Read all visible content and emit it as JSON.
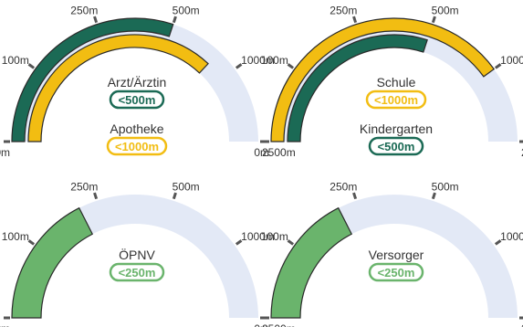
{
  "colors": {
    "track": "#e3e9f6",
    "tick": "#555555",
    "dark_green": "#1b6a55",
    "yellow": "#f2bd12",
    "light_green": "#6ab46c",
    "outline": "#2a2a2a"
  },
  "tick_labels": [
    "0m",
    "100m",
    "250m",
    "500m",
    "1000m",
    "2500m"
  ],
  "chart_data": [
    {
      "type": "gauge",
      "scale_max": 5,
      "items": [
        {
          "label": "Arzt/Ärztin",
          "badge": "<500m",
          "value": 3.0,
          "color": "dark_green"
        },
        {
          "label": "Apotheke",
          "badge": "<1000m",
          "value": 3.7,
          "color": "yellow"
        }
      ]
    },
    {
      "type": "gauge",
      "scale_max": 5,
      "items": [
        {
          "label": "Schule",
          "badge": "<1000m",
          "value": 4.0,
          "color": "yellow"
        },
        {
          "label": "Kindergarten",
          "badge": "<500m",
          "value": 3.0,
          "color": "dark_green"
        }
      ]
    },
    {
      "type": "gauge",
      "scale_max": 5,
      "items": [
        {
          "label": "ÖPNV",
          "badge": "<250m",
          "value": 1.75,
          "color": "light_green"
        }
      ]
    },
    {
      "type": "gauge",
      "scale_max": 5,
      "items": [
        {
          "label": "Versorger",
          "badge": "<250m",
          "value": 1.75,
          "color": "light_green"
        }
      ]
    }
  ]
}
